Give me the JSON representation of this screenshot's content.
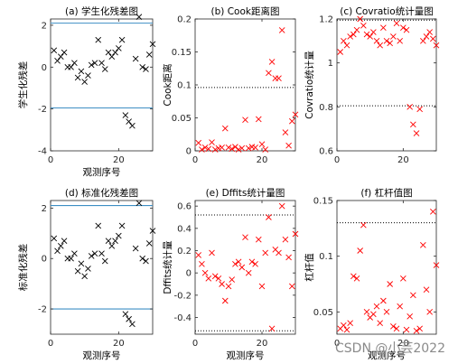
{
  "watermark": "CSDN @小芸2022",
  "chart_data": [
    {
      "type": "scatter",
      "title": "(a) 学生化残差图",
      "xlabel": "观测序号",
      "ylabel": "学生化残差",
      "xlim": [
        0,
        30
      ],
      "ylim": [
        -4,
        2.3
      ],
      "xticks": [
        0,
        20
      ],
      "yticks": [
        -4,
        -2,
        0,
        2
      ],
      "marker_color": "#000000",
      "hlines": {
        "values": [
          2.1,
          -1.95
        ],
        "style": "solid",
        "color": "#3e8fc4"
      },
      "x": [
        1,
        2,
        3,
        4,
        5,
        6,
        7,
        8,
        9,
        10,
        11,
        12,
        13,
        14,
        15,
        16,
        17,
        18,
        19,
        20,
        21,
        22,
        23,
        24,
        25,
        26,
        27,
        28,
        29,
        30
      ],
      "y": [
        0.8,
        0.3,
        0.5,
        0.7,
        0.0,
        0.0,
        0.2,
        -0.5,
        -0.2,
        -0.7,
        -0.4,
        0.1,
        0.2,
        1.3,
        0.2,
        -0.1,
        0.7,
        0.5,
        0.7,
        0.9,
        1.3,
        -2.3,
        -2.6,
        -2.8,
        0.4,
        2.4,
        0.0,
        -0.1,
        0.6,
        1.1
      ]
    },
    {
      "type": "scatter",
      "title": "(b) Cook距离图",
      "xlabel": "",
      "ylabel": "Cook距离",
      "xlim": [
        0,
        30
      ],
      "ylim": [
        0,
        0.2
      ],
      "xticks": [
        0,
        20
      ],
      "yticks": [
        0,
        0.05,
        0.1,
        0.15,
        0.2
      ],
      "marker_color": "#ff0000",
      "hlines": {
        "values": [
          0.096
        ],
        "style": "dotted",
        "color": "#000000"
      },
      "x": [
        1,
        2,
        3,
        4,
        5,
        6,
        7,
        8,
        9,
        10,
        11,
        12,
        13,
        14,
        15,
        16,
        17,
        18,
        19,
        20,
        21,
        22,
        23,
        24,
        25,
        26,
        27,
        28,
        29,
        30
      ],
      "y": [
        0.012,
        0.002,
        0.005,
        0.003,
        0.013,
        0.002,
        0.004,
        0.005,
        0.034,
        0.005,
        0.003,
        0.006,
        0.002,
        0.004,
        0.047,
        0.004,
        0.006,
        0.005,
        0.048,
        0.01,
        0.002,
        0.118,
        0.135,
        0.11,
        0.11,
        0.183,
        0.028,
        0.008,
        0.045,
        0.055
      ]
    },
    {
      "type": "scatter",
      "title": "(c) Covratio统计量图",
      "xlabel": "",
      "ylabel": "Covratio统计量",
      "xlim": [
        0,
        30
      ],
      "ylim": [
        0.6,
        1.2
      ],
      "xticks": [
        0,
        20
      ],
      "yticks": [
        0.6,
        0.8,
        1.0,
        1.2
      ],
      "marker_color": "#ff0000",
      "hlines": {
        "values": [
          1.195,
          0.805
        ],
        "style": "dotted",
        "color": "#000000"
      },
      "x": [
        1,
        2,
        3,
        4,
        5,
        6,
        7,
        8,
        9,
        10,
        11,
        12,
        13,
        14,
        15,
        16,
        17,
        18,
        19,
        20,
        21,
        22,
        23,
        24,
        25,
        26,
        27,
        28,
        29,
        30
      ],
      "y": [
        1.05,
        1.1,
        1.08,
        1.12,
        1.13,
        1.15,
        1.2,
        1.17,
        1.13,
        1.12,
        1.14,
        1.1,
        1.08,
        1.16,
        1.1,
        1.09,
        1.12,
        1.18,
        1.1,
        1.16,
        1.15,
        0.8,
        0.72,
        0.68,
        0.79,
        1.1,
        1.12,
        1.14,
        1.11,
        1.08
      ]
    },
    {
      "type": "scatter",
      "title": "(d) 标准化残差图",
      "xlabel": "观测序号",
      "ylabel": "标准化残差",
      "xlim": [
        0,
        30
      ],
      "ylim": [
        -3,
        2.3
      ],
      "xticks": [
        0,
        20
      ],
      "yticks": [
        -2,
        0,
        2
      ],
      "marker_color": "#000000",
      "hlines": {
        "values": [
          2.1,
          -2.0
        ],
        "style": "solid",
        "color": "#3e8fc4"
      },
      "x": [
        1,
        2,
        3,
        4,
        5,
        6,
        7,
        8,
        9,
        10,
        11,
        12,
        13,
        14,
        15,
        16,
        17,
        18,
        19,
        20,
        21,
        22,
        23,
        24,
        25,
        26,
        27,
        28,
        29,
        30
      ],
      "y": [
        0.8,
        0.3,
        0.5,
        0.7,
        0.0,
        0.0,
        0.2,
        -0.5,
        -0.2,
        -0.7,
        -0.4,
        0.1,
        0.2,
        1.3,
        0.2,
        -0.1,
        0.7,
        0.5,
        0.7,
        0.9,
        1.3,
        -2.2,
        -2.4,
        -2.6,
        0.4,
        2.2,
        0.0,
        -0.1,
        0.6,
        1.1
      ]
    },
    {
      "type": "scatter",
      "title": "(e) Dffits统计量图",
      "xlabel": "观测序号",
      "ylabel": "Dffits统计量",
      "xlim": [
        0,
        30
      ],
      "ylim": [
        -0.55,
        0.65
      ],
      "xticks": [
        0,
        20
      ],
      "yticks": [
        -0.4,
        -0.2,
        0,
        0.2,
        0.4,
        0.6
      ],
      "marker_color": "#ff0000",
      "hlines": {
        "values": [
          0.52,
          -0.52
        ],
        "style": "dotted",
        "color": "#000000"
      },
      "x": [
        1,
        2,
        3,
        4,
        5,
        6,
        7,
        8,
        9,
        10,
        11,
        12,
        13,
        14,
        15,
        16,
        17,
        18,
        19,
        20,
        21,
        22,
        23,
        24,
        25,
        26,
        27,
        28,
        29,
        30
      ],
      "y": [
        0.16,
        0.08,
        0.0,
        -0.05,
        0.18,
        -0.03,
        -0.05,
        -0.1,
        -0.25,
        -0.12,
        -0.06,
        0.08,
        0.1,
        0.05,
        0.32,
        0.0,
        0.1,
        0.08,
        0.3,
        -0.12,
        0.18,
        0.5,
        -0.5,
        0.21,
        0.18,
        0.6,
        0.3,
        0.14,
        -0.12,
        0.35
      ]
    },
    {
      "type": "scatter",
      "title": "(f) 杠杆值图",
      "xlabel": "观测序号",
      "ylabel": "杠杆值",
      "xlim": [
        0,
        30
      ],
      "ylim": [
        0.03,
        0.15
      ],
      "xticks": [
        0,
        20
      ],
      "yticks": [
        0.05,
        0.1,
        0.15
      ],
      "marker_color": "#ff0000",
      "hlines": {
        "values": [
          0.13
        ],
        "style": "dotted",
        "color": "#000000"
      },
      "x": [
        1,
        2,
        3,
        4,
        5,
        6,
        7,
        8,
        9,
        10,
        11,
        12,
        13,
        14,
        15,
        16,
        17,
        18,
        19,
        20,
        21,
        22,
        23,
        24,
        25,
        26,
        27,
        28,
        29,
        30
      ],
      "y": [
        0.035,
        0.038,
        0.034,
        0.04,
        0.082,
        0.08,
        0.105,
        0.128,
        0.05,
        0.045,
        0.048,
        0.055,
        0.04,
        0.06,
        0.05,
        0.075,
        0.037,
        0.035,
        0.055,
        0.08,
        0.034,
        0.046,
        0.065,
        0.033,
        0.035,
        0.11,
        0.07,
        0.05,
        0.14,
        0.092
      ]
    }
  ]
}
